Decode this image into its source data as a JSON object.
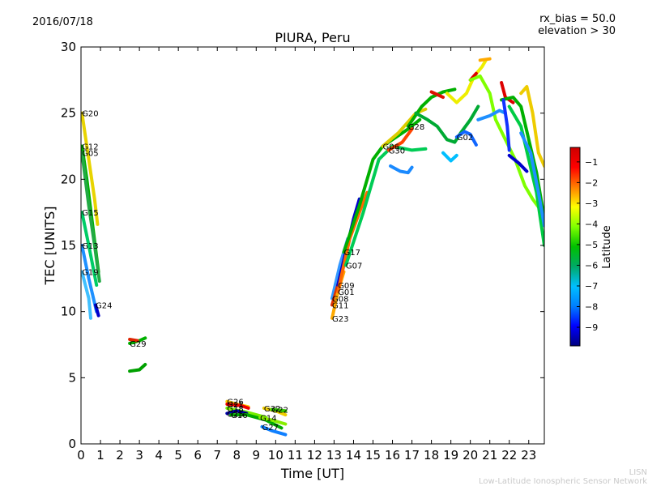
{
  "header": {
    "date": "2016/07/18",
    "rx_bias": "rx_bias = 50.0",
    "elevation": "elevation > 30"
  },
  "footer": {
    "line1": "LISN",
    "line2": "Low-Latitude Ionospheric Sensor Network"
  },
  "chart_data": {
    "type": "line",
    "title": "PIURA, Peru",
    "xlabel": "Time [UT]",
    "ylabel": "TEC [UNITS]",
    "xlim": [
      0,
      23.8
    ],
    "ylim": [
      0,
      30
    ],
    "xticks": [
      0,
      1,
      2,
      3,
      4,
      5,
      6,
      7,
      8,
      9,
      10,
      11,
      12,
      13,
      14,
      15,
      16,
      17,
      18,
      19,
      20,
      21,
      22,
      23
    ],
    "yticks": [
      0,
      5,
      10,
      15,
      20,
      25,
      30
    ],
    "grid": false,
    "colorbar": {
      "label": "Latitude",
      "min": -9.9,
      "max": -0.3,
      "ticks": [
        -1,
        -2,
        -3,
        -4,
        -5,
        -6,
        -7,
        -8,
        -9
      ],
      "colors": [
        "#00007f",
        "#0000ff",
        "#007fff",
        "#00bfff",
        "#00aa66",
        "#00c000",
        "#7fff00",
        "#ffff00",
        "#ff7f00",
        "#ff0000",
        "#cc0000"
      ]
    },
    "series": [
      {
        "name": "G20",
        "color": "#e8d400",
        "points": [
          [
            0.05,
            25.0
          ],
          [
            0.3,
            22.5
          ],
          [
            0.5,
            20.5
          ],
          [
            0.7,
            18.5
          ],
          [
            0.85,
            16.6
          ]
        ]
      },
      {
        "name": "G12",
        "color": "#00b000",
        "points": [
          [
            0.05,
            22.5
          ],
          [
            0.3,
            20.0
          ],
          [
            0.6,
            16.5
          ],
          [
            0.9,
            13.0
          ]
        ]
      },
      {
        "name": "G05",
        "color": "#22aa44",
        "points": [
          [
            0.05,
            22.0
          ],
          [
            0.4,
            18.0
          ],
          [
            0.7,
            15.0
          ],
          [
            0.95,
            12.3
          ]
        ]
      },
      {
        "name": "G15",
        "color": "#00cc66",
        "points": [
          [
            0.05,
            17.5
          ],
          [
            0.4,
            15.0
          ],
          [
            0.8,
            12.0
          ]
        ]
      },
      {
        "name": "G13",
        "color": "#1e90ff",
        "points": [
          [
            0.05,
            15.0
          ],
          [
            0.4,
            12.5
          ],
          [
            0.8,
            10.0
          ]
        ]
      },
      {
        "name": "G19",
        "color": "#40c0ff",
        "points": [
          [
            0.05,
            13.0
          ],
          [
            0.4,
            11.0
          ],
          [
            0.5,
            9.5
          ]
        ]
      },
      {
        "name": "G24",
        "color": "#0000cc",
        "points": [
          [
            0.75,
            10.5
          ],
          [
            0.9,
            9.7
          ]
        ]
      },
      {
        "name": "G29",
        "color": "#00b000",
        "points": [
          [
            2.5,
            7.6
          ],
          [
            3.0,
            7.8
          ],
          [
            3.3,
            8.0
          ]
        ]
      },
      {
        "name": "",
        "color": "#dd2200",
        "points": [
          [
            2.5,
            7.9
          ],
          [
            2.9,
            7.8
          ]
        ]
      },
      {
        "name": "",
        "color": "#00a000",
        "points": [
          [
            2.5,
            5.5
          ],
          [
            3.0,
            5.6
          ],
          [
            3.3,
            6.0
          ]
        ]
      },
      {
        "name": "G26",
        "color": "#ffcc00",
        "points": [
          [
            7.5,
            3.2
          ],
          [
            8.0,
            3.0
          ],
          [
            8.6,
            2.8
          ]
        ]
      },
      {
        "name": "G21",
        "color": "#ee0000",
        "points": [
          [
            7.5,
            3.0
          ],
          [
            8.2,
            2.9
          ],
          [
            8.6,
            2.7
          ]
        ]
      },
      {
        "name": "G18",
        "color": "#77ee00",
        "points": [
          [
            7.5,
            2.7
          ],
          [
            8.5,
            2.4
          ],
          [
            9.5,
            2.0
          ]
        ]
      },
      {
        "name": "G25",
        "color": "#0000aa",
        "points": [
          [
            7.5,
            2.3
          ],
          [
            8.0,
            2.5
          ],
          [
            8.5,
            2.3
          ]
        ]
      },
      {
        "name": "G16",
        "color": "#00aa00",
        "points": [
          [
            7.7,
            2.2
          ],
          [
            8.5,
            2.2
          ],
          [
            9.5,
            1.8
          ],
          [
            10.3,
            1.2
          ]
        ]
      },
      {
        "name": "G32",
        "color": "#eecc00",
        "points": [
          [
            9.4,
            2.7
          ],
          [
            10.0,
            2.5
          ],
          [
            10.5,
            2.2
          ]
        ]
      },
      {
        "name": "G22",
        "color": "#33cc00",
        "points": [
          [
            9.8,
            2.6
          ],
          [
            10.5,
            2.5
          ]
        ]
      },
      {
        "name": "G14",
        "color": "#88ee00",
        "points": [
          [
            9.2,
            2.0
          ],
          [
            9.8,
            1.8
          ],
          [
            10.5,
            1.5
          ]
        ]
      },
      {
        "name": "G27",
        "color": "#1080ff",
        "points": [
          [
            9.3,
            1.3
          ],
          [
            9.8,
            1.0
          ],
          [
            10.5,
            0.7
          ]
        ]
      },
      {
        "name": "G08",
        "color": "#3399ff",
        "points": [
          [
            12.9,
            11.0
          ],
          [
            13.3,
            13.5
          ],
          [
            13.7,
            15.5
          ]
        ]
      },
      {
        "name": "G11",
        "color": "#dd3300",
        "points": [
          [
            12.9,
            10.5
          ],
          [
            13.3,
            12.5
          ],
          [
            13.6,
            14.5
          ]
        ]
      },
      {
        "name": "G23",
        "color": "#ffaa00",
        "points": [
          [
            12.9,
            9.5
          ],
          [
            13.2,
            11.5
          ],
          [
            13.5,
            13.0
          ]
        ]
      },
      {
        "name": "G09",
        "color": "#0000cc",
        "points": [
          [
            13.2,
            12.0
          ],
          [
            13.6,
            14.5
          ],
          [
            14.0,
            17.0
          ],
          [
            14.3,
            18.5
          ]
        ]
      },
      {
        "name": "G01",
        "color": "#ff6600",
        "points": [
          [
            13.2,
            11.5
          ],
          [
            13.8,
            15.5
          ],
          [
            14.3,
            17.5
          ],
          [
            14.7,
            19.0
          ]
        ]
      },
      {
        "name": "G17",
        "color": "#00b000",
        "points": [
          [
            13.5,
            14.5
          ],
          [
            14.3,
            18.0
          ],
          [
            15.0,
            21.5
          ],
          [
            15.5,
            22.5
          ],
          [
            16.0,
            23.0
          ],
          [
            16.8,
            23.8
          ],
          [
            17.4,
            24.5
          ]
        ]
      },
      {
        "name": "G07",
        "color": "#00cc55",
        "points": [
          [
            13.6,
            13.5
          ],
          [
            14.5,
            17.5
          ],
          [
            15.3,
            21.5
          ],
          [
            16.0,
            22.5
          ],
          [
            17.0,
            22.2
          ],
          [
            17.7,
            22.3
          ]
        ]
      },
      {
        "name": "G30",
        "color": "#ff4400",
        "points": [
          [
            15.8,
            22.2
          ],
          [
            16.5,
            22.8
          ],
          [
            17.0,
            23.8
          ]
        ]
      },
      {
        "name": "G06",
        "color": "#ddcc00",
        "points": [
          [
            15.5,
            22.5
          ],
          [
            16.3,
            23.5
          ],
          [
            17.2,
            25.0
          ],
          [
            17.7,
            25.3
          ]
        ]
      },
      {
        "name": "",
        "color": "#1a8aff",
        "points": [
          [
            15.9,
            21.0
          ],
          [
            16.4,
            20.6
          ],
          [
            16.8,
            20.5
          ],
          [
            17.0,
            20.9
          ]
        ]
      },
      {
        "name": "G28",
        "color": "#00b000",
        "points": [
          [
            16.8,
            24.0
          ],
          [
            17.5,
            25.5
          ],
          [
            18.0,
            26.2
          ],
          [
            18.6,
            26.6
          ],
          [
            19.2,
            26.8
          ]
        ]
      },
      {
        "name": "",
        "color": "#dd1100",
        "points": [
          [
            18.0,
            26.6
          ],
          [
            18.6,
            26.2
          ]
        ]
      },
      {
        "name": "",
        "color": "#00aa33",
        "points": [
          [
            17.2,
            25.0
          ],
          [
            17.8,
            24.5
          ],
          [
            18.3,
            24.0
          ],
          [
            18.8,
            23.0
          ],
          [
            19.2,
            22.8
          ],
          [
            19.5,
            23.5
          ],
          [
            20.0,
            24.5
          ],
          [
            20.4,
            25.5
          ]
        ]
      },
      {
        "name": "",
        "color": "#00bfff",
        "points": [
          [
            18.6,
            22.0
          ],
          [
            19.0,
            21.4
          ],
          [
            19.3,
            21.8
          ]
        ]
      },
      {
        "name": "G02",
        "color": "#1166ff",
        "points": [
          [
            19.3,
            23.2
          ],
          [
            19.7,
            23.6
          ],
          [
            20.0,
            23.4
          ],
          [
            20.3,
            22.6
          ]
        ]
      },
      {
        "name": "",
        "color": "#eeee00",
        "points": [
          [
            18.8,
            26.5
          ],
          [
            19.3,
            25.8
          ],
          [
            19.8,
            26.5
          ],
          [
            20.2,
            27.8
          ],
          [
            20.6,
            28.5
          ],
          [
            20.8,
            29.0
          ]
        ]
      },
      {
        "name": "",
        "color": "#ffaa00",
        "points": [
          [
            20.5,
            29.0
          ],
          [
            21.0,
            29.1
          ]
        ]
      },
      {
        "name": "",
        "color": "#dd0000",
        "points": [
          [
            20.0,
            27.5
          ],
          [
            20.3,
            28.0
          ]
        ]
      },
      {
        "name": "",
        "color": "#7fff00",
        "points": [
          [
            20.0,
            27.5
          ],
          [
            20.5,
            27.8
          ],
          [
            21.0,
            26.5
          ],
          [
            21.3,
            24.5
          ],
          [
            21.8,
            23.0
          ],
          [
            22.3,
            21.5
          ],
          [
            22.8,
            19.5
          ],
          [
            23.2,
            18.5
          ],
          [
            23.7,
            17.5
          ]
        ]
      },
      {
        "name": "",
        "color": "#1e90ff",
        "points": [
          [
            20.4,
            24.5
          ],
          [
            21.0,
            24.8
          ],
          [
            21.5,
            25.2
          ],
          [
            21.8,
            25.0
          ]
        ]
      },
      {
        "name": "",
        "color": "#dd0000",
        "points": [
          [
            21.6,
            27.3
          ],
          [
            21.8,
            26.2
          ],
          [
            22.2,
            25.8
          ]
        ]
      },
      {
        "name": "",
        "color": "#eecc00",
        "points": [
          [
            22.6,
            26.5
          ],
          [
            22.9,
            27.0
          ],
          [
            23.2,
            25.0
          ],
          [
            23.5,
            22.0
          ],
          [
            23.8,
            21.0
          ]
        ]
      },
      {
        "name": "",
        "color": "#00b000",
        "points": [
          [
            21.6,
            26.0
          ],
          [
            22.2,
            26.2
          ],
          [
            22.6,
            25.5
          ],
          [
            23.0,
            23.0
          ],
          [
            23.4,
            20.5
          ],
          [
            23.8,
            17.0
          ]
        ]
      },
      {
        "name": "",
        "color": "#00cc44",
        "points": [
          [
            22.0,
            25.5
          ],
          [
            22.6,
            24.0
          ],
          [
            23.0,
            21.5
          ],
          [
            23.4,
            19.0
          ],
          [
            23.8,
            15.0
          ]
        ]
      },
      {
        "name": "",
        "color": "#1133ff",
        "points": [
          [
            21.7,
            26.0
          ],
          [
            21.9,
            24.0
          ],
          [
            22.0,
            22.2
          ]
        ]
      },
      {
        "name": "",
        "color": "#0000cc",
        "points": [
          [
            22.0,
            21.8
          ],
          [
            22.5,
            21.2
          ],
          [
            22.9,
            20.6
          ]
        ]
      },
      {
        "name": "",
        "color": "#1e90ff",
        "points": [
          [
            22.6,
            23.5
          ],
          [
            23.1,
            22.0
          ],
          [
            23.5,
            19.0
          ],
          [
            23.8,
            16.5
          ]
        ]
      }
    ]
  }
}
